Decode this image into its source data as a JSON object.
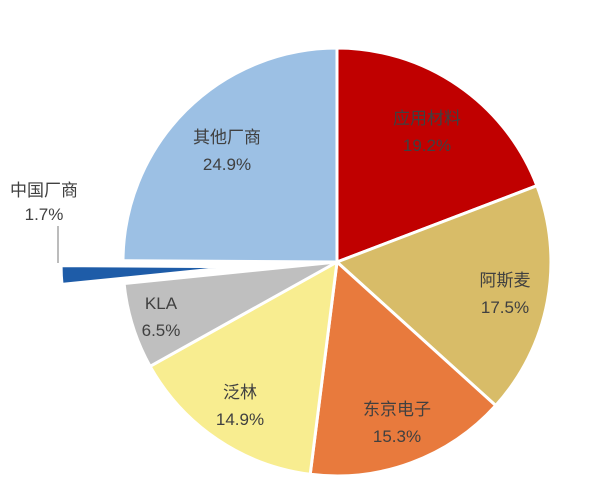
{
  "chart_data": {
    "type": "pie",
    "title": "",
    "unit": "%",
    "direction": "clockwise",
    "start_angle_deg": 0,
    "legend": "none",
    "label_style": "name-and-percent-inside",
    "label_color": "#404040",
    "leader_line_color": "#A6A6A6",
    "slice_border_color": "#FFFFFF",
    "background": "#FFFFFF",
    "slices": [
      {
        "name": "应用材料",
        "value": 19.2,
        "label": "19.2%",
        "color": "#C00000",
        "exploded": false
      },
      {
        "name": "阿斯麦",
        "value": 17.5,
        "label": "17.5%",
        "color": "#D8BC68",
        "exploded": false
      },
      {
        "name": "东京电子",
        "value": 15.3,
        "label": "15.3%",
        "color": "#E87A3D",
        "exploded": false
      },
      {
        "name": "泛林",
        "value": 14.9,
        "label": "14.9%",
        "color": "#F8ED90",
        "exploded": false
      },
      {
        "name": "KLA",
        "value": 6.5,
        "label": "6.5%",
        "color": "#BFBFBF",
        "exploded": false
      },
      {
        "name": "中国厂商",
        "value": 1.7,
        "label": "1.7%",
        "color": "#1E5CA8",
        "exploded": true,
        "label_outside": true
      },
      {
        "name": "其他厂商",
        "value": 24.9,
        "label": "24.9%",
        "color": "#9CC0E4",
        "exploded": false
      }
    ]
  }
}
